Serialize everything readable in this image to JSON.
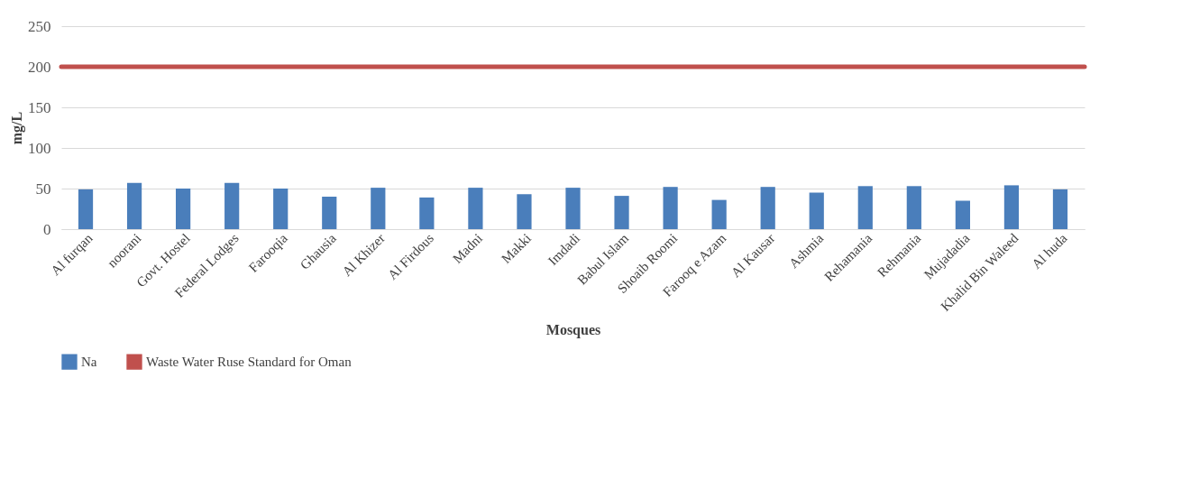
{
  "chart_data": {
    "type": "bar",
    "xlabel": "Mosques",
    "ylabel": "mg/L",
    "categories": [
      "Al furqan",
      "noorani",
      "Govt. Hostel",
      "Federal Lodges",
      "Farooqia",
      "Ghausia",
      "Al Khizer",
      "Al Firdous",
      "Madni",
      "Makki",
      "Imdadi",
      "Babul Islam",
      "Shoaib Roomi",
      "Farooq e Azam",
      "Al Kausar",
      "Ashmia",
      "Rehamania",
      "Rehmania",
      "Mujadadia",
      "Khalid Bin Waleed",
      "Al huda"
    ],
    "series": [
      {
        "name": "Na",
        "color": "#4a7ebb",
        "values": [
          49,
          57,
          50,
          57,
          50,
          40,
          51,
          39,
          51,
          43,
          51,
          41,
          52,
          36,
          52,
          45,
          53,
          53,
          35,
          54,
          49
        ]
      }
    ],
    "ref_lines": [
      {
        "axis": "y",
        "value": 200,
        "label": "Waste Water Ruse Standard for Oman",
        "color": "#c0504d"
      }
    ],
    "ylim": [
      0,
      250
    ],
    "yticks": [
      0,
      50,
      100,
      150,
      200,
      250
    ],
    "grid": "y",
    "legend": "bottom"
  }
}
